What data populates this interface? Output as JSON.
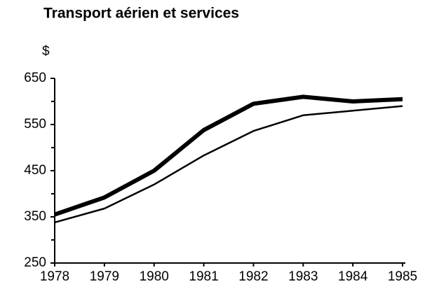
{
  "chart_data": {
    "type": "line",
    "title": "Transport aérien et services",
    "y_label": "$",
    "x": [
      1978,
      1979,
      1980,
      1981,
      1982,
      1983,
      1984,
      1985
    ],
    "series": [
      {
        "color": "#000000",
        "width": "thick",
        "values": [
          355,
          392,
          450,
          538,
          595,
          610,
          600,
          605
        ]
      },
      {
        "color": "#000000",
        "width": "thin",
        "values": [
          338,
          368,
          420,
          483,
          536,
          570,
          580,
          590
        ]
      }
    ],
    "xlim": [
      1978,
      1985
    ],
    "xticks": [
      1978,
      1979,
      1980,
      1981,
      1982,
      1983,
      1984,
      1985
    ],
    "ylim": [
      250,
      650
    ],
    "yticks": [
      250,
      350,
      450,
      550,
      650
    ],
    "yminorticks": [
      300,
      400,
      500,
      600
    ],
    "grid": false
  }
}
